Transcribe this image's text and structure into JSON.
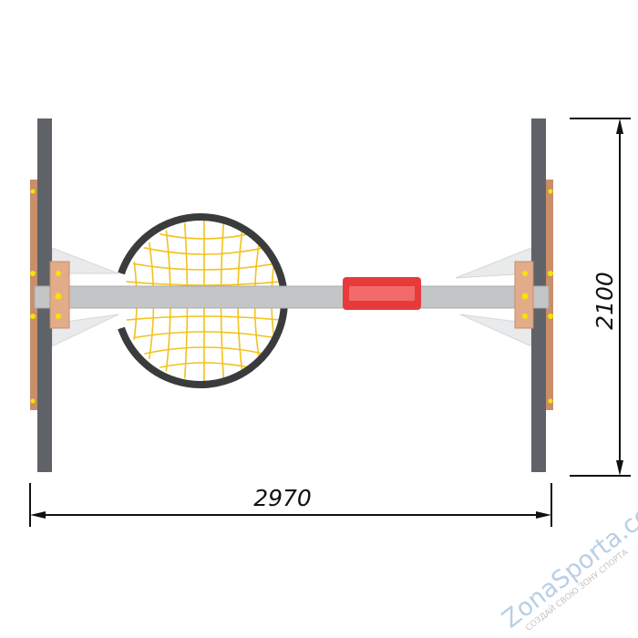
{
  "dimensions": {
    "width_label": "2970",
    "height_label": "2100"
  },
  "watermark": {
    "brand": "ZonaSporta.com",
    "slogan": "СОЗДАЙ СВОЮ ЗОНУ СПОРТА"
  },
  "colors": {
    "post": "#5f6266",
    "wood": "#c98e6a",
    "beam": "#c3c5c7",
    "rope": "#f2c21c",
    "ring": "#3a3b3d",
    "seat": "#e83a3a",
    "bolt": "#f5e400"
  }
}
